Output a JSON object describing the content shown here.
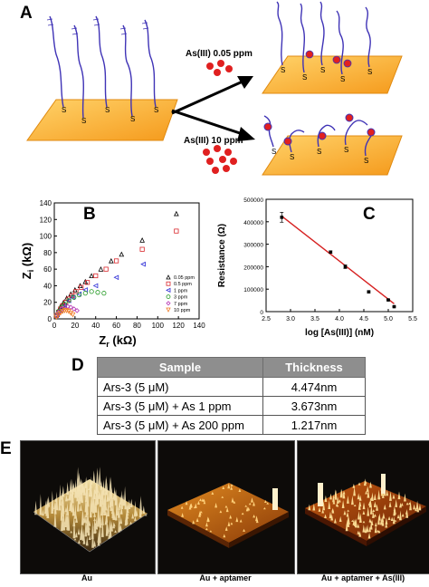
{
  "panels": {
    "a": "A",
    "b": "B",
    "c": "C",
    "d": "D",
    "e": "E"
  },
  "panelA": {
    "label_low": "As(III) 0.05 ppm",
    "label_high": "As(III) 10 ppm",
    "thiol": "S"
  },
  "chart_data": [
    {
      "type": "scatter",
      "panel": "B",
      "xlabel_main": "Z",
      "xlabel_sub": "r",
      "xlabel_unit": " (kΩ)",
      "ylabel_main": "Z",
      "ylabel_sub": "i",
      "ylabel_unit": " (kΩ)",
      "xlim": [
        0,
        140
      ],
      "ylim": [
        0,
        140
      ],
      "xticks": [
        "0",
        "20",
        "40",
        "60",
        "80",
        "100",
        "120",
        "140"
      ],
      "yticks": [
        "0",
        "20",
        "40",
        "60",
        "80",
        "100",
        "120",
        "140"
      ],
      "series": [
        {
          "name": "0.05 ppm",
          "color": "#000000",
          "marker": "triangle-up",
          "x": [
            2,
            4,
            6,
            9,
            12,
            16,
            20,
            25,
            30,
            36,
            45,
            55,
            65,
            85,
            118
          ],
          "y": [
            5,
            10,
            15,
            20,
            25,
            30,
            35,
            40,
            45,
            52,
            60,
            70,
            78,
            95,
            127
          ]
        },
        {
          "name": "0.5 ppm",
          "color": "#d9262b",
          "marker": "square",
          "x": [
            2,
            4,
            6,
            8,
            11,
            14,
            17,
            21,
            26,
            32,
            40,
            50,
            60,
            85,
            118
          ],
          "y": [
            4,
            8,
            12,
            16,
            20,
            24,
            28,
            33,
            38,
            44,
            52,
            60,
            70,
            84,
            106
          ]
        },
        {
          "name": "1 ppm",
          "color": "#2b2bd6",
          "marker": "triangle-left",
          "x": [
            3,
            6,
            10,
            14,
            18,
            24,
            30,
            40,
            60,
            86
          ],
          "y": [
            5,
            10,
            16,
            22,
            26,
            30,
            35,
            40,
            50,
            66
          ]
        },
        {
          "name": "3 ppm",
          "color": "#229922",
          "marker": "circle",
          "x": [
            2,
            4,
            7,
            10,
            14,
            19,
            24,
            30,
            36,
            42,
            48
          ],
          "y": [
            4,
            9,
            14,
            18,
            22,
            26,
            29,
            31,
            33,
            32,
            31
          ]
        },
        {
          "name": "7 ppm",
          "color": "#b536b5",
          "marker": "diamond",
          "x": [
            2,
            4,
            7,
            10,
            13,
            16,
            19,
            22
          ],
          "y": [
            4,
            8,
            12,
            14,
            15,
            14,
            12,
            10
          ]
        },
        {
          "name": "10 ppm",
          "color": "#f07a22",
          "marker": "triangle-down",
          "x": [
            2,
            4,
            6,
            8,
            10,
            12,
            14,
            16,
            18
          ],
          "y": [
            2,
            5,
            7,
            9,
            10,
            10,
            9,
            7,
            5
          ]
        }
      ],
      "legend_position": "right"
    },
    {
      "type": "scatter",
      "panel": "C",
      "xlabel": "log [As(III)] (nM)",
      "ylabel": "Resistance (Ω)",
      "xlim": [
        2.5,
        5.5
      ],
      "ylim": [
        0,
        500000
      ],
      "xticks": [
        "2.5",
        "3.0",
        "3.5",
        "4.0",
        "4.5",
        "5.0",
        "5.5"
      ],
      "yticks": [
        "0",
        "100000",
        "200000",
        "300000",
        "400000",
        "500000"
      ],
      "points": {
        "x": [
          2.82,
          3.82,
          4.12,
          4.6,
          5.0,
          5.12
        ],
        "y": [
          420000,
          265000,
          200000,
          88000,
          52000,
          22000
        ],
        "err": [
          22000,
          5000,
          8000,
          4000,
          3000,
          2000
        ]
      },
      "fit": {
        "x": [
          2.82,
          5.12
        ],
        "y": [
          425000,
          35000
        ],
        "color": "#d62020"
      }
    }
  ],
  "tableD": {
    "headers": [
      "Sample",
      "Thickness"
    ],
    "rows": [
      [
        "Ars-3 (5 μM)",
        "4.474nm"
      ],
      [
        "Ars-3 (5 μM) + As 1 ppm",
        "3.673nm"
      ],
      [
        "Ars-3 (5 μM) + As 200 ppm",
        "1.217nm"
      ]
    ]
  },
  "panelE": {
    "captions": [
      "Au",
      "Au + aptamer",
      "Au + aptamer + As(III)"
    ]
  }
}
